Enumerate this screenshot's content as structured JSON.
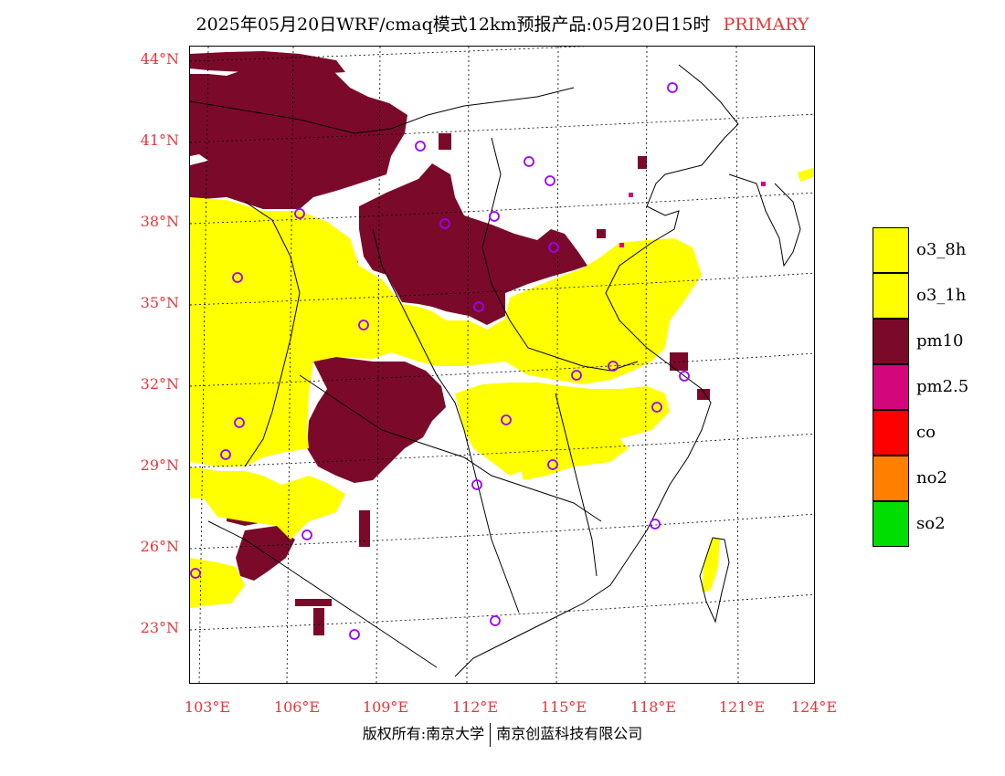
{
  "title": {
    "main": "2025年05月20日WRF/cmaq模式12km预报产品:05月20日15时",
    "tag": "PRIMARY"
  },
  "map": {
    "lat_labels": [
      "44°N",
      "41°N",
      "38°N",
      "35°N",
      "32°N",
      "29°N",
      "26°N",
      "23°N"
    ],
    "lon_labels": [
      "103°E",
      "106°E",
      "109°E",
      "112°E",
      "115°E",
      "118°E",
      "121°E",
      "124°E"
    ],
    "colors": {
      "o3_8h": "#ffff00",
      "o3_1h": "#ffff00",
      "pm10": "#7b0a2a",
      "pm2_5": "#d4067c",
      "co": "#ff0000",
      "no2": "#ff7f00",
      "so2": "#00dd00",
      "station_marker": "#9a00ff",
      "axis_label": "#e8353a"
    }
  },
  "legend": [
    {
      "label": "o3_8h",
      "color": "#ffff00"
    },
    {
      "label": "o3_1h",
      "color": "#ffff00"
    },
    {
      "label": "pm10",
      "color": "#7b0a2a"
    },
    {
      "label": "pm2.5",
      "color": "#d4067c"
    },
    {
      "label": "co",
      "color": "#ff0000"
    },
    {
      "label": "no2",
      "color": "#ff7f00"
    },
    {
      "label": "so2",
      "color": "#00dd00"
    }
  ],
  "footer": {
    "left": "版权所有:南京大学",
    "right": "南京创蓝科技有限公司"
  }
}
